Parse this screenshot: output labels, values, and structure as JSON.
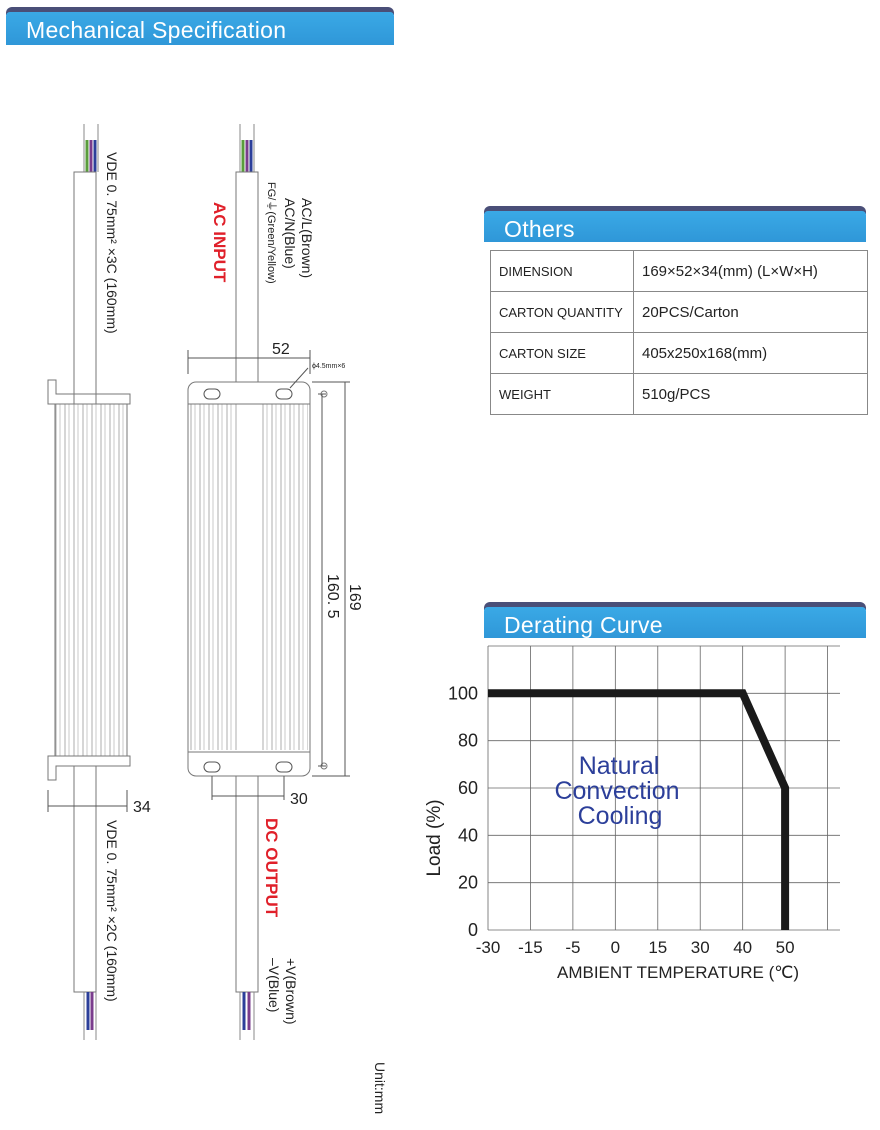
{
  "mechanical": {
    "title": "Mechanical Specification",
    "unit_label": "Unit:mm",
    "left_view": {
      "top_cable_label": "VDE   0. 75mm² ×3C (160mm)",
      "bottom_cable_label": "VDE   0. 75mm² ×2C (160mm)",
      "height_dim": "34"
    },
    "right_view": {
      "ac_input_title": "AC INPUT",
      "ac_input_lines": [
        "AC/L(Brown)",
        "AC/N(Blue)",
        "FG/⏚(Green/Yellow)"
      ],
      "dc_output_title": "DC OUTPUT",
      "dc_output_lines": [
        "+V(Brown)",
        "–V(Blue)"
      ],
      "width_dim": "52",
      "hole_label": "ϕ4.5mm×6",
      "length_dim": "169",
      "hole_span_dim": "160. 5",
      "hole_offset_dim": "30"
    },
    "colors": {
      "red_text": "#e0202a",
      "wire_green": "#5a9c3c",
      "wire_purple": "#7a3c8c",
      "wire_blue": "#2c3f9a"
    }
  },
  "others": {
    "title": "Others",
    "rows": [
      {
        "key": "DIMENSION",
        "value": "169×52×34(mm) (L×W×H)"
      },
      {
        "key": "CARTON QUANTITY",
        "value": "20PCS/Carton"
      },
      {
        "key": "CARTON SIZE",
        "value": "405x250x168(mm)"
      },
      {
        "key": "WEIGHT",
        "value": "510g/PCS"
      }
    ]
  },
  "derating": {
    "title": "Derating Curve",
    "annotation_lines": [
      "Natural",
      "Convection",
      "Cooling"
    ],
    "chart_data": {
      "type": "line",
      "x": [
        -30,
        40,
        50,
        50
      ],
      "y": [
        100,
        100,
        60,
        0
      ],
      "xticks": [
        "-30",
        "-15",
        "-5",
        "0",
        "15",
        "30",
        "40",
        "50"
      ],
      "yticks": [
        "0",
        "20",
        "40",
        "60",
        "80",
        "100"
      ],
      "xlabel": "AMBIENT  TEMPERATURE (℃)",
      "ylabel": "Load (%)",
      "ylim": [
        0,
        120
      ],
      "grid": true
    }
  }
}
